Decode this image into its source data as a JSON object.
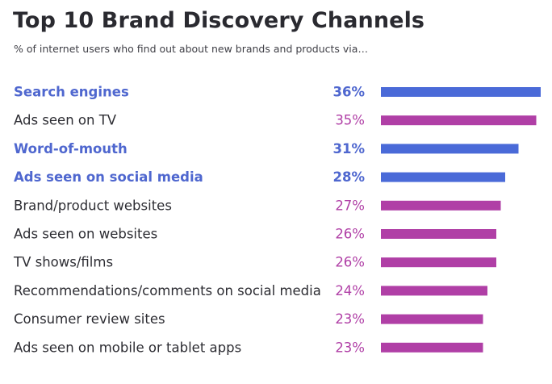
{
  "colors": {
    "highlight": "#4f67cf",
    "normal": "#b03fa6",
    "label_text": "#2d2d33",
    "bar_highlight": "#4a6ad8",
    "bar_normal": "#b03fa6"
  },
  "chart_data": {
    "type": "bar",
    "orientation": "horizontal",
    "title": "Top 10 Brand Discovery Channels",
    "subtitle": "% of internet users who find out about new brands and products via…",
    "xlabel": "",
    "ylabel": "",
    "unit": "%",
    "xlim": [
      0,
      36
    ],
    "grid": false,
    "legend": "none",
    "categories": [
      "Search engines",
      "Ads seen on TV",
      "Word-of-mouth",
      "Ads seen on social media",
      "Brand/product websites",
      "Ads seen on websites",
      "TV shows/films",
      "Recommendations/comments on social media",
      "Consumer review sites",
      "Ads seen on mobile or tablet apps"
    ],
    "values": [
      36,
      35,
      31,
      28,
      27,
      26,
      26,
      24,
      23,
      23
    ],
    "value_labels": [
      "36%",
      "35%",
      "31%",
      "28%",
      "27%",
      "26%",
      "26%",
      "24%",
      "23%",
      "23%"
    ],
    "highlighted": [
      true,
      false,
      true,
      true,
      false,
      false,
      false,
      false,
      false,
      false
    ]
  }
}
